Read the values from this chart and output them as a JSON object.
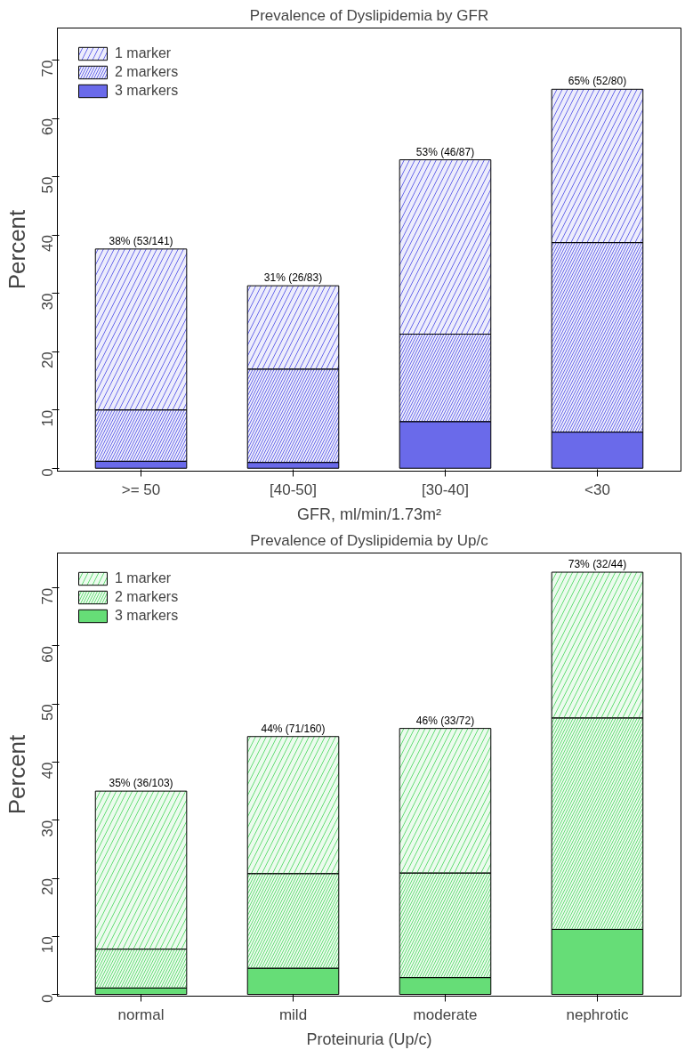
{
  "chart_data": [
    {
      "type": "bar",
      "stacked": true,
      "title": "Prevalence of Dyslipidemia by GFR",
      "xlabel": "GFR, ml/min/1.73m²",
      "ylabel": "Percent",
      "categories": [
        ">= 50",
        "[40-50]",
        "[30-40]",
        "<30"
      ],
      "series": [
        {
          "name": "3 markers",
          "color": "#6a6aea",
          "values": [
            1.2,
            1.0,
            8.0,
            6.2
          ]
        },
        {
          "name": "2 markers",
          "color": "#6a6aea",
          "values": [
            8.8,
            16.0,
            15.0,
            32.5
          ]
        },
        {
          "name": "1 marker",
          "color": "#6a6aea",
          "values": [
            27.6,
            14.3,
            29.9,
            26.3
          ]
        }
      ],
      "totals": [
        "38% (53/141)",
        "31% (26/83)",
        "53% (46/87)",
        "65% (52/80)"
      ],
      "ylim": [
        -0.5,
        75.5
      ],
      "yticks": [
        0,
        10,
        20,
        30,
        40,
        50,
        60,
        70
      ],
      "legend": "top left"
    },
    {
      "type": "bar",
      "stacked": true,
      "title": "Prevalence of Dyslipidemia by Up/c",
      "xlabel": "Proteinuria (Up/c)",
      "ylabel": "Percent",
      "categories": [
        "normal",
        "mild",
        "moderate",
        "nephrotic"
      ],
      "series": [
        {
          "name": "3 markers",
          "color": "#66dd77",
          "values": [
            1.1,
            4.5,
            2.9,
            11.2
          ]
        },
        {
          "name": "2 markers",
          "color": "#66dd77",
          "values": [
            6.7,
            16.3,
            18.0,
            36.4
          ]
        },
        {
          "name": "1 marker",
          "color": "#66dd77",
          "values": [
            27.2,
            23.6,
            24.9,
            25.1
          ]
        }
      ],
      "totals": [
        "35% (36/103)",
        "44% (71/160)",
        "46% (33/72)",
        "73% (32/44)"
      ],
      "ylim": [
        -0.3,
        76
      ],
      "yticks": [
        0,
        10,
        20,
        30,
        40,
        50,
        60,
        70
      ],
      "legend": "top left"
    }
  ]
}
